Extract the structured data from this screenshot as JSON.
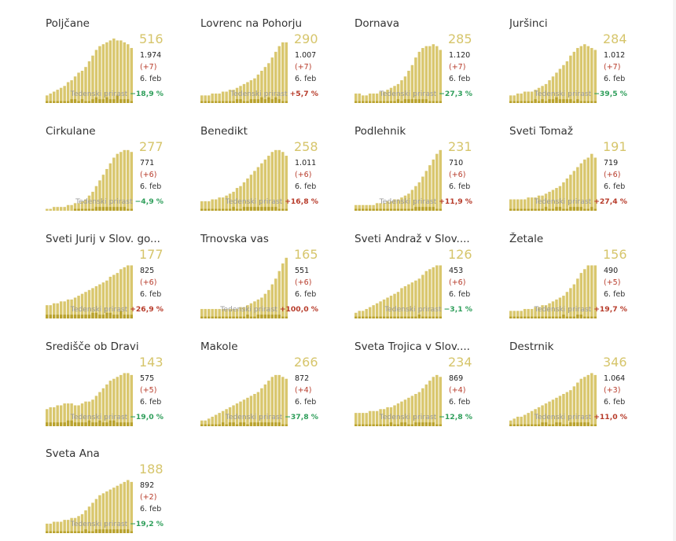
{
  "colors": {
    "bar": "#d9c76e",
    "bar_dark": "#b9a22d",
    "big_number": "#d6c56b",
    "up": "#b73b2a",
    "down": "#2e9e5a"
  },
  "label_growth": "Tedenski prirast",
  "chart_data": [
    {
      "type": "bar",
      "title": "Poljčane",
      "active": "516",
      "total": "1.974",
      "delta": "(+7)",
      "date": "6. feb",
      "growth": "−18,9 %",
      "trend": "down",
      "values": [
        4,
        5,
        6,
        7,
        8,
        9,
        11,
        12,
        14,
        16,
        17,
        19,
        22,
        25,
        28,
        30,
        31,
        32,
        33,
        34,
        33,
        33,
        32,
        31,
        29
      ],
      "daily": [
        1,
        1,
        1,
        1,
        1,
        1,
        1,
        2,
        2,
        1,
        2,
        1,
        1,
        2,
        3,
        2,
        2,
        3,
        2,
        2,
        4,
        2,
        2,
        2,
        1
      ]
    },
    {
      "type": "bar",
      "title": "Lovrenc na Pohorju",
      "active": "290",
      "total": "1.007",
      "delta": "(+7)",
      "date": "6. feb",
      "growth": "+5,7 %",
      "trend": "up",
      "values": [
        4,
        4,
        4,
        5,
        5,
        5,
        6,
        6,
        7,
        7,
        8,
        9,
        10,
        11,
        12,
        13,
        15,
        17,
        19,
        21,
        24,
        27,
        30,
        32,
        32
      ],
      "daily": [
        1,
        1,
        1,
        1,
        1,
        1,
        1,
        1,
        1,
        1,
        2,
        2,
        1,
        1,
        2,
        2,
        2,
        3,
        2,
        3,
        2,
        3,
        2,
        1,
        1
      ]
    },
    {
      "type": "bar",
      "title": "Dornava",
      "active": "285",
      "total": "1.120",
      "delta": "(+7)",
      "date": "6. feb",
      "growth": "−27,3 %",
      "trend": "down",
      "values": [
        5,
        5,
        4,
        4,
        5,
        5,
        5,
        6,
        6,
        7,
        8,
        9,
        10,
        12,
        14,
        17,
        20,
        24,
        27,
        29,
        30,
        30,
        31,
        30,
        28
      ],
      "daily": [
        1,
        1,
        1,
        1,
        1,
        1,
        1,
        1,
        1,
        1,
        1,
        1,
        2,
        1,
        2,
        2,
        2,
        2,
        2,
        2,
        2,
        1,
        1,
        1,
        1
      ]
    },
    {
      "type": "bar",
      "title": "Juršinci",
      "active": "284",
      "total": "1.012",
      "delta": "(+7)",
      "date": "6. feb",
      "growth": "−39,5 %",
      "trend": "down",
      "values": [
        4,
        4,
        5,
        5,
        6,
        6,
        6,
        7,
        8,
        9,
        10,
        12,
        14,
        16,
        18,
        20,
        22,
        25,
        27,
        29,
        30,
        31,
        30,
        29,
        28
      ],
      "daily": [
        1,
        1,
        1,
        1,
        1,
        1,
        1,
        2,
        1,
        2,
        1,
        2,
        2,
        3,
        2,
        2,
        2,
        2,
        1,
        2,
        1,
        1,
        1,
        1,
        1
      ]
    },
    {
      "type": "bar",
      "title": "Cirkulane",
      "active": "277",
      "total": "771",
      "delta": "(+6)",
      "date": "6. feb",
      "growth": "−4,9 %",
      "trend": "down",
      "values": [
        1,
        1,
        2,
        2,
        2,
        2,
        3,
        3,
        4,
        4,
        5,
        6,
        8,
        10,
        13,
        16,
        19,
        22,
        25,
        28,
        30,
        31,
        32,
        32,
        31
      ],
      "daily": [
        0,
        0,
        0,
        0,
        0,
        0,
        0,
        0,
        1,
        1,
        1,
        1,
        1,
        1,
        2,
        2,
        2,
        2,
        2,
        2,
        2,
        2,
        2,
        1,
        1
      ]
    },
    {
      "type": "bar",
      "title": "Benedikt",
      "active": "258",
      "total": "1.011",
      "delta": "(+6)",
      "date": "6. feb",
      "growth": "+16,8 %",
      "trend": "up",
      "values": [
        5,
        5,
        5,
        6,
        6,
        7,
        7,
        8,
        9,
        10,
        12,
        13,
        15,
        17,
        19,
        21,
        23,
        25,
        27,
        29,
        31,
        32,
        32,
        31,
        29
      ],
      "daily": [
        1,
        1,
        1,
        1,
        1,
        1,
        1,
        1,
        1,
        2,
        1,
        1,
        2,
        2,
        2,
        2,
        2,
        2,
        2,
        2,
        2,
        2,
        1,
        1,
        1
      ]
    },
    {
      "type": "bar",
      "title": "Podlehnik",
      "active": "231",
      "total": "710",
      "delta": "(+6)",
      "date": "6. feb",
      "growth": "+11,9 %",
      "trend": "up",
      "values": [
        3,
        3,
        3,
        3,
        3,
        3,
        4,
        4,
        4,
        5,
        5,
        6,
        6,
        7,
        8,
        9,
        11,
        13,
        15,
        18,
        21,
        24,
        27,
        30,
        32
      ],
      "daily": [
        1,
        1,
        1,
        1,
        1,
        1,
        1,
        1,
        1,
        1,
        1,
        1,
        1,
        1,
        1,
        1,
        1,
        2,
        2,
        2,
        2,
        2,
        2,
        1,
        1
      ]
    },
    {
      "type": "bar",
      "title": "Sveti Tomaž",
      "active": "191",
      "total": "719",
      "delta": "(+6)",
      "date": "6. feb",
      "growth": "+27,4 %",
      "trend": "up",
      "values": [
        6,
        6,
        6,
        6,
        6,
        7,
        7,
        7,
        8,
        8,
        9,
        10,
        11,
        12,
        13,
        15,
        17,
        19,
        21,
        23,
        25,
        27,
        28,
        30,
        28
      ],
      "daily": [
        1,
        1,
        1,
        1,
        1,
        1,
        1,
        1,
        1,
        1,
        2,
        1,
        1,
        2,
        2,
        1,
        1,
        2,
        2,
        2,
        2,
        1,
        1,
        2,
        1
      ]
    },
    {
      "type": "bar",
      "title": "Sveti Jurij v Slov. go...",
      "active": "177",
      "total": "825",
      "delta": "(+6)",
      "date": "6. feb",
      "growth": "+26,9 %",
      "trend": "up",
      "values": [
        7,
        7,
        8,
        8,
        9,
        9,
        10,
        10,
        11,
        12,
        13,
        14,
        15,
        16,
        17,
        18,
        19,
        20,
        22,
        23,
        24,
        26,
        27,
        28,
        28
      ],
      "daily": [
        2,
        2,
        2,
        2,
        2,
        2,
        2,
        2,
        2,
        2,
        2,
        2,
        2,
        3,
        3,
        2,
        2,
        3,
        3,
        2,
        2,
        4,
        2,
        2,
        2
      ]
    },
    {
      "type": "bar",
      "title": "Trnovska vas",
      "active": "165",
      "total": "551",
      "delta": "(+6)",
      "date": "6. feb",
      "growth": "+100,0 %",
      "trend": "up",
      "values": [
        5,
        5,
        5,
        5,
        5,
        5,
        5,
        5,
        5,
        5,
        5,
        6,
        6,
        7,
        8,
        9,
        10,
        11,
        13,
        15,
        18,
        21,
        25,
        29,
        32
      ],
      "daily": [
        1,
        1,
        1,
        1,
        1,
        1,
        1,
        1,
        1,
        1,
        1,
        1,
        1,
        2,
        1,
        1,
        2,
        2,
        2,
        2,
        2,
        2,
        2,
        1,
        1
      ]
    },
    {
      "type": "bar",
      "title": "Sveti Andraž v Slov....",
      "active": "126",
      "total": "453",
      "delta": "(+6)",
      "date": "6. feb",
      "growth": "−3,1 %",
      "trend": "down",
      "values": [
        3,
        4,
        4,
        5,
        6,
        7,
        8,
        9,
        10,
        11,
        12,
        13,
        14,
        16,
        17,
        18,
        19,
        20,
        21,
        23,
        25,
        26,
        27,
        28,
        28
      ],
      "daily": [
        1,
        1,
        1,
        1,
        1,
        1,
        1,
        1,
        1,
        1,
        1,
        1,
        1,
        1,
        1,
        1,
        1,
        1,
        2,
        1,
        1,
        1,
        1,
        1,
        1
      ]
    },
    {
      "type": "bar",
      "title": "Žetale",
      "active": "156",
      "total": "490",
      "delta": "(+5)",
      "date": "6. feb",
      "growth": "+19,7 %",
      "trend": "up",
      "values": [
        4,
        4,
        4,
        4,
        5,
        5,
        5,
        6,
        6,
        7,
        7,
        8,
        9,
        10,
        11,
        12,
        14,
        16,
        18,
        21,
        24,
        26,
        28,
        28,
        28
      ],
      "daily": [
        1,
        1,
        1,
        1,
        1,
        1,
        1,
        1,
        1,
        1,
        1,
        1,
        1,
        1,
        1,
        2,
        1,
        1,
        1,
        2,
        2,
        1,
        1,
        1,
        1
      ]
    },
    {
      "type": "bar",
      "title": "Središče ob Dravi",
      "active": "143",
      "total": "575",
      "delta": "(+5)",
      "date": "6. feb",
      "growth": "−19,0 %",
      "trend": "down",
      "values": [
        9,
        10,
        10,
        11,
        11,
        12,
        12,
        12,
        11,
        11,
        12,
        13,
        13,
        14,
        16,
        18,
        20,
        22,
        24,
        25,
        26,
        27,
        28,
        28,
        27
      ],
      "daily": [
        2,
        2,
        2,
        2,
        2,
        2,
        3,
        3,
        2,
        2,
        2,
        2,
        3,
        2,
        2,
        3,
        2,
        2,
        3,
        3,
        2,
        2,
        2,
        2,
        2
      ]
    },
    {
      "type": "bar",
      "title": "Makole",
      "active": "266",
      "total": "872",
      "delta": "(+4)",
      "date": "6. feb",
      "growth": "−37,8 %",
      "trend": "down",
      "values": [
        3,
        3,
        4,
        5,
        6,
        7,
        8,
        9,
        10,
        11,
        12,
        13,
        14,
        15,
        16,
        17,
        18,
        20,
        22,
        24,
        26,
        27,
        27,
        26,
        25
      ],
      "daily": [
        1,
        1,
        1,
        1,
        1,
        1,
        2,
        1,
        2,
        2,
        1,
        2,
        2,
        1,
        2,
        2,
        2,
        2,
        2,
        2,
        2,
        2,
        2,
        1,
        1
      ]
    },
    {
      "type": "bar",
      "title": "Sveta Trojica v Slov....",
      "active": "234",
      "total": "869",
      "delta": "(+4)",
      "date": "6. feb",
      "growth": "−12,8 %",
      "trend": "down",
      "values": [
        7,
        7,
        7,
        7,
        8,
        8,
        8,
        9,
        9,
        10,
        10,
        11,
        12,
        13,
        14,
        15,
        16,
        17,
        18,
        20,
        22,
        24,
        26,
        27,
        26
      ],
      "daily": [
        1,
        1,
        1,
        1,
        1,
        1,
        1,
        1,
        1,
        1,
        2,
        1,
        1,
        2,
        2,
        1,
        1,
        2,
        2,
        2,
        2,
        2,
        2,
        1,
        1
      ]
    },
    {
      "type": "bar",
      "title": "Destrnik",
      "active": "346",
      "total": "1.064",
      "delta": "(+3)",
      "date": "6. feb",
      "growth": "+11,0 %",
      "trend": "up",
      "values": [
        3,
        4,
        5,
        5,
        6,
        7,
        8,
        9,
        10,
        11,
        12,
        13,
        14,
        15,
        16,
        17,
        18,
        19,
        21,
        23,
        25,
        26,
        27,
        28,
        27
      ],
      "daily": [
        1,
        1,
        1,
        1,
        1,
        1,
        1,
        1,
        1,
        2,
        2,
        1,
        1,
        2,
        2,
        1,
        1,
        2,
        2,
        2,
        2,
        2,
        2,
        1,
        1
      ]
    },
    {
      "type": "bar",
      "title": "Sveta Ana",
      "active": "188",
      "total": "892",
      "delta": "(+2)",
      "date": "6. feb",
      "growth": "−19,2 %",
      "trend": "down",
      "values": [
        5,
        5,
        6,
        6,
        6,
        7,
        7,
        8,
        8,
        9,
        10,
        12,
        14,
        16,
        18,
        20,
        21,
        22,
        23,
        24,
        25,
        26,
        27,
        28,
        27
      ],
      "daily": [
        1,
        1,
        1,
        1,
        1,
        1,
        1,
        1,
        1,
        1,
        1,
        2,
        1,
        1,
        2,
        2,
        2,
        2,
        2,
        2,
        2,
        2,
        2,
        2,
        1
      ]
    }
  ]
}
